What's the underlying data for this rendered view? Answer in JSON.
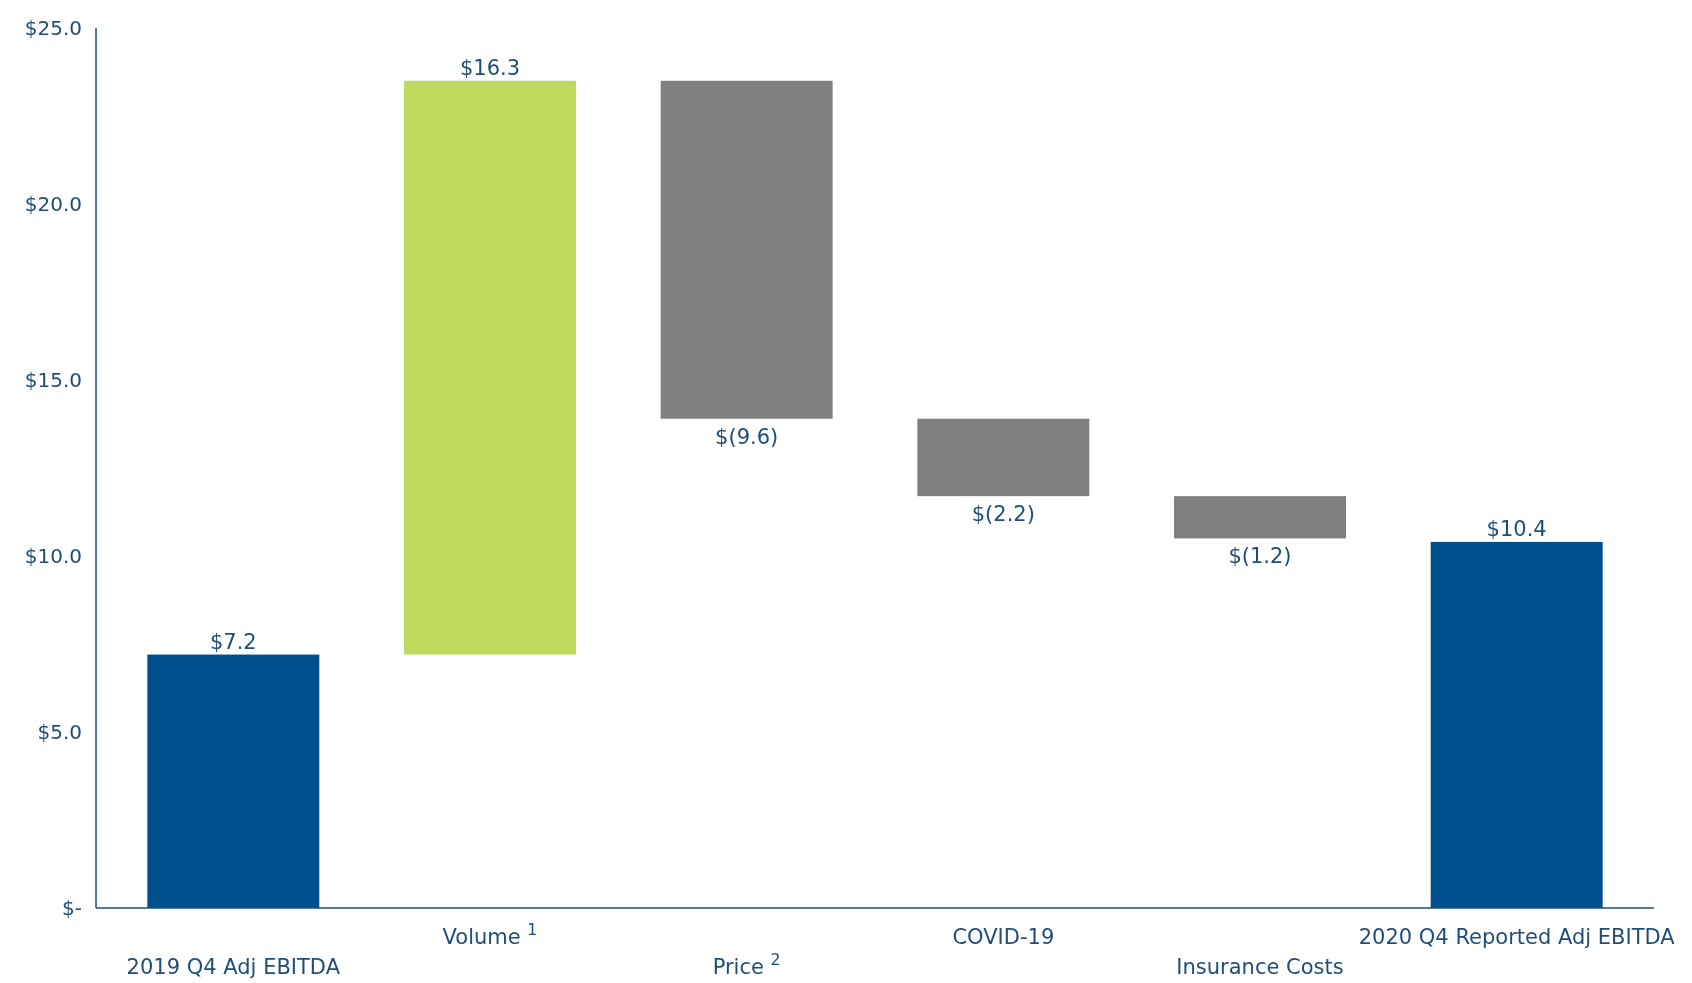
{
  "chart_data": {
    "type": "bar",
    "categories": [
      "2019 Q4 Adj EBITDA",
      "Volume $^{1}$",
      "Price $^{2}$",
      "COVID-19",
      "Insurance Costs",
      "2020 Q4 Reported Adj EBITDA"
    ],
    "values": [
      7.2,
      16.3,
      -9.6,
      -2.2,
      -1.2,
      10.4
    ],
    "base": [
      0,
      7.2,
      23.5,
      13.9,
      11.7,
      0
    ],
    "colors": [
      "#004f8c",
      "#bfd95f",
      "#808080",
      "#808080",
      "#808080",
      "#004f8c"
    ],
    "value_labels": [
      "$7.2",
      "$16.3",
      "$(9.6)",
      "$(2.2)",
      "$(1.2)",
      "$10.4"
    ],
    "ylim": [
      0,
      25
    ],
    "yticks": [
      {
        "value": 0,
        "label": "$-"
      },
      {
        "value": 5,
        "label": "$5.0"
      },
      {
        "value": 10,
        "label": "$10.0"
      },
      {
        "value": 15,
        "label": "$15.0"
      },
      {
        "value": 20,
        "label": "$20.0"
      },
      {
        "value": 25,
        "label": "$25.0"
      }
    ],
    "grid": false
  }
}
